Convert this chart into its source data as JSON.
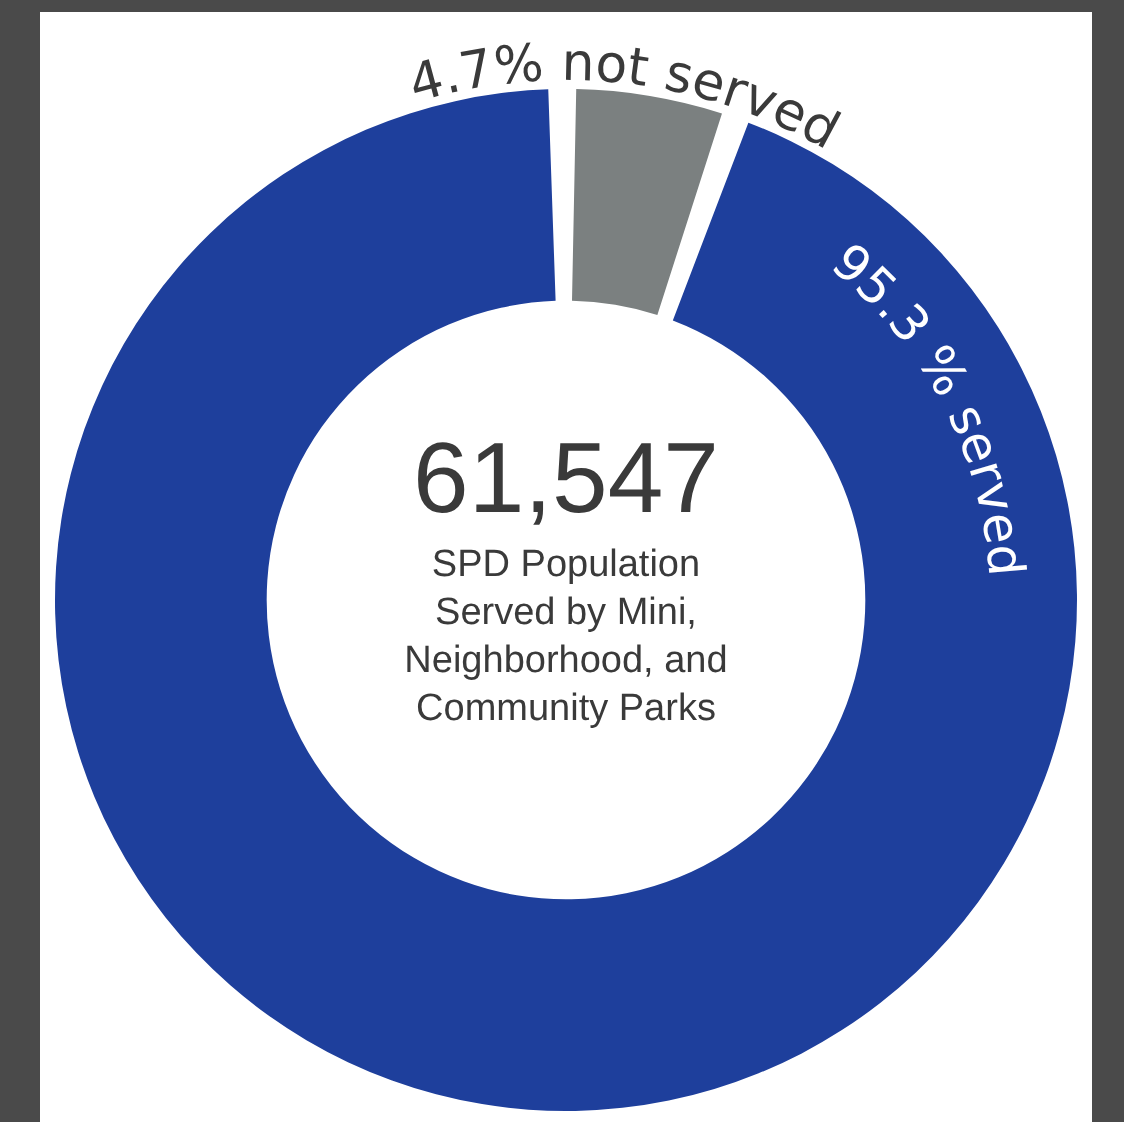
{
  "chart_data": {
    "type": "donut",
    "title": "61,547",
    "subtitle": "SPD Population Served by Mini, Neighborhood, and Community Parks",
    "categories": [
      "not served",
      "served"
    ],
    "values": [
      4.7,
      95.3
    ],
    "value_labels": [
      "4.7%",
      "95.3 %"
    ],
    "colors": [
      "#7b8080",
      "#1e3f9c"
    ],
    "legend": false
  }
}
